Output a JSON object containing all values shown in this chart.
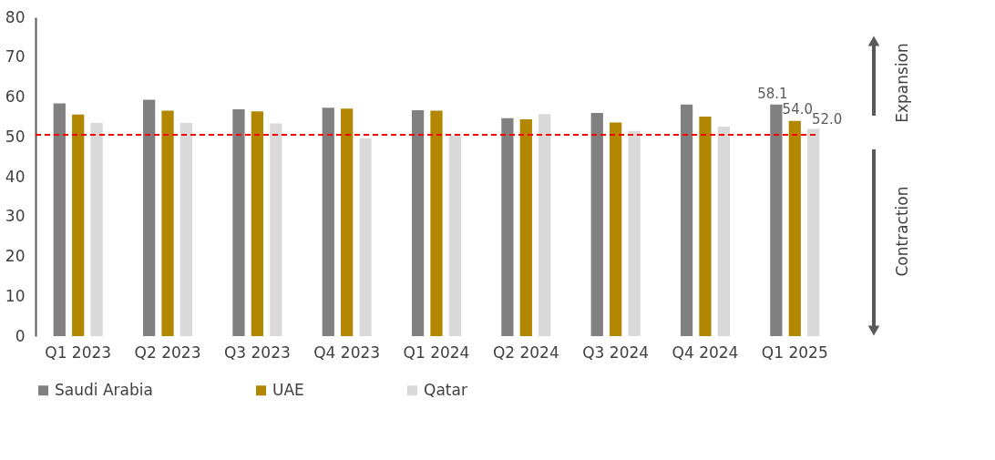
{
  "chart_data": {
    "type": "bar",
    "categories": [
      "Q1 2023",
      "Q2 2023",
      "Q3 2023",
      "Q4 2023",
      "Q1 2024",
      "Q2 2024",
      "Q3 2024",
      "Q4 2024",
      "Q1 2025"
    ],
    "series": [
      {
        "name": "Saudi Arabia",
        "color": "#808080",
        "values": [
          58.4,
          59.3,
          56.9,
          57.3,
          56.7,
          54.7,
          56.0,
          58.1,
          58.1
        ],
        "value_labels": [
          null,
          null,
          null,
          null,
          null,
          null,
          null,
          null,
          "58.1"
        ]
      },
      {
        "name": "UAE",
        "color": "#b38600",
        "values": [
          55.6,
          56.6,
          56.4,
          57.1,
          56.6,
          54.4,
          53.6,
          55.1,
          54.0
        ],
        "value_labels": [
          null,
          null,
          null,
          null,
          null,
          null,
          null,
          null,
          "54.0"
        ]
      },
      {
        "name": "Qatar",
        "color": "#d9d9d9",
        "values": [
          53.5,
          53.5,
          53.4,
          49.6,
          50.3,
          55.7,
          51.5,
          52.6,
          52.0
        ],
        "value_labels": [
          null,
          null,
          null,
          null,
          null,
          null,
          null,
          null,
          "52.0"
        ]
      }
    ],
    "ylim": [
      0,
      80
    ],
    "yticks": [
      0,
      10,
      20,
      30,
      40,
      50,
      60,
      70,
      80
    ],
    "ref_lines": [
      {
        "axis": "y",
        "value": 50.5,
        "color": "#ff0000",
        "line_style": "dashed"
      }
    ],
    "annotations": [
      "Expansion",
      "Contraction"
    ],
    "grid": false,
    "legend": "bottom"
  }
}
